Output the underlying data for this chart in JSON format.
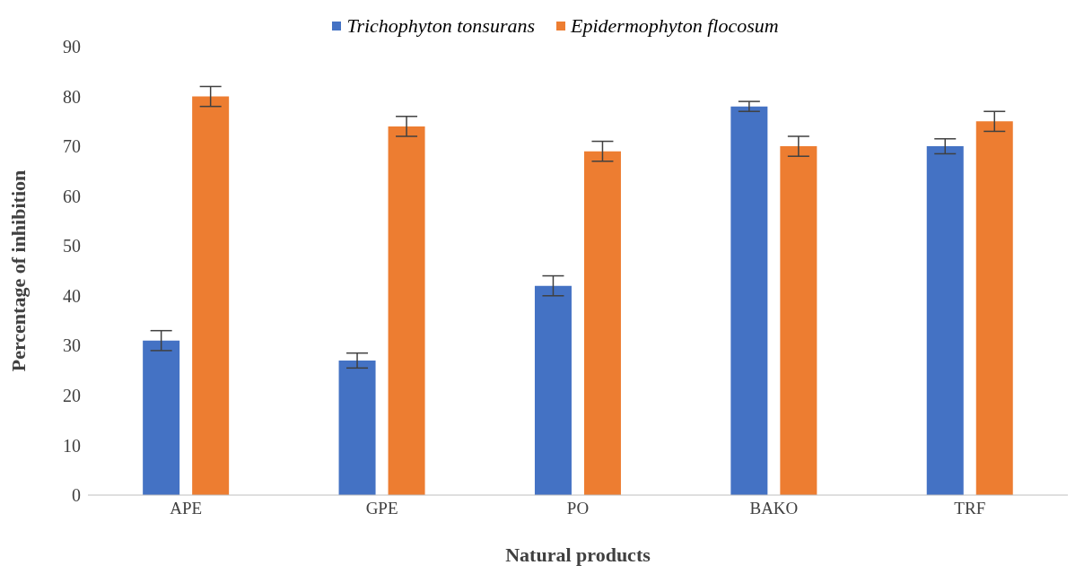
{
  "chart_data": {
    "type": "bar",
    "xlabel": "Natural products",
    "ylabel": "Percentage of inhibition",
    "categories": [
      "APE",
      "GPE",
      "PO",
      "BAKO",
      "TRF"
    ],
    "series": [
      {
        "name": "Trichophyton tonsurans",
        "color": "#4472c4",
        "values": [
          31,
          27,
          42,
          78,
          70
        ],
        "errors": [
          2,
          1.5,
          2,
          1,
          1.5
        ]
      },
      {
        "name": "Epidermophyton flocosum",
        "color": "#ed7d31",
        "values": [
          80,
          74,
          69,
          70,
          75
        ],
        "errors": [
          2,
          2,
          2,
          2,
          2
        ]
      }
    ],
    "ylim": [
      0,
      90
    ],
    "yticks": [
      0,
      10,
      20,
      30,
      40,
      50,
      60,
      70,
      80,
      90
    ],
    "grid": false,
    "legend": "top"
  }
}
